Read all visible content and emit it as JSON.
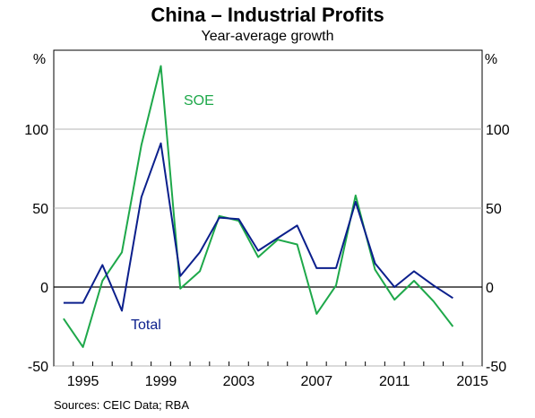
{
  "chart_data": {
    "type": "line",
    "title": "China – Industrial Profits",
    "subtitle": "Year-average growth",
    "ylabel_left": "%",
    "ylabel_right": "%",
    "ylim": [
      -50,
      150
    ],
    "yticks": [
      -50,
      0,
      50,
      100
    ],
    "ytick_labels": [
      "-50",
      "0",
      "50",
      "100"
    ],
    "xlim": [
      1994,
      2016
    ],
    "xticks": [
      1995,
      1999,
      2003,
      2007,
      2011,
      2015
    ],
    "xtick_labels": [
      "1995",
      "1999",
      "2003",
      "2007",
      "2011",
      "2015"
    ],
    "grid": true,
    "series": [
      {
        "name": "SOE",
        "color": "#1ea84a",
        "x": [
          1994.5,
          1995.5,
          1996.5,
          1997.5,
          1998.5,
          1999.5,
          2000.5,
          2001.5,
          2002.5,
          2003.5,
          2004.5,
          2005.5,
          2006.5,
          2007.5,
          2008.5,
          2009.5,
          2010.5,
          2011.5,
          2012.5,
          2013.5,
          2014.5,
          2015.5
        ],
        "values": [
          -20,
          -38,
          4,
          22,
          90,
          140,
          -1,
          10,
          45,
          42,
          19,
          30,
          27,
          -17,
          1,
          58,
          11,
          -8,
          4,
          -9,
          -25,
          null
        ]
      },
      {
        "name": "Total",
        "color": "#0b1f8c",
        "x": [
          1994.5,
          1995.5,
          1996.5,
          1997.5,
          1998.5,
          1999.5,
          2000.5,
          2001.5,
          2002.5,
          2003.5,
          2004.5,
          2005.5,
          2006.5,
          2007.5,
          2008.5,
          2009.5,
          2010.5,
          2011.5,
          2012.5,
          2013.5,
          2014.5,
          2015.5
        ],
        "values": [
          -10,
          -10,
          14,
          -15,
          57,
          91,
          7,
          22,
          44,
          43,
          23,
          31,
          39,
          12,
          12,
          54,
          15,
          0,
          10,
          1,
          -7,
          null
        ]
      }
    ],
    "source": "Sources:   CEIC Data; RBA"
  }
}
